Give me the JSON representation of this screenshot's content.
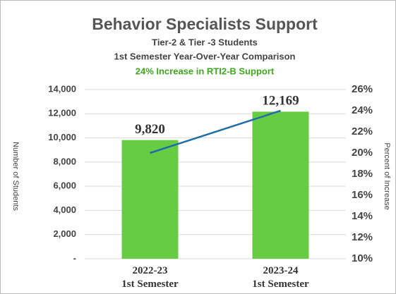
{
  "chart_data": {
    "type": "bar_line",
    "title": "Behavior Specialists Support",
    "subtitles": [
      "Tier-2 & Tier -3 Students",
      "1st Semester Year-Over-Year Comparison"
    ],
    "highlight": "24% Increase in RTI2-B Support",
    "categories": [
      "2022-23\n1st Semester",
      "2023-24\n1st Semester"
    ],
    "ylabel": "Number of Students",
    "y2label": "Percent of Increase",
    "series": [
      {
        "name": "Number of Students",
        "type": "bar",
        "color": "#66cc44",
        "values": [
          9820,
          12169
        ],
        "value_labels": [
          "9,820",
          "12,169"
        ]
      },
      {
        "name": "Percent of Increase",
        "type": "line",
        "axis": "y2",
        "color": "#1f6fa6",
        "values": [
          20,
          24
        ]
      }
    ],
    "ylim": [
      0,
      14000
    ],
    "yticks": [
      {
        "value": 0,
        "label": "-"
      },
      {
        "value": 2000,
        "label": "2,000"
      },
      {
        "value": 4000,
        "label": "4,000"
      },
      {
        "value": 6000,
        "label": "6,000"
      },
      {
        "value": 8000,
        "label": "8,000"
      },
      {
        "value": 10000,
        "label": "10,000"
      },
      {
        "value": 12000,
        "label": "12,000"
      },
      {
        "value": 14000,
        "label": "14,000"
      }
    ],
    "y2lim": [
      10,
      26
    ],
    "y2ticks": [
      {
        "value": 10,
        "label": "10%"
      },
      {
        "value": 12,
        "label": "12%"
      },
      {
        "value": 14,
        "label": "14%"
      },
      {
        "value": 16,
        "label": "16%"
      },
      {
        "value": 18,
        "label": "18%"
      },
      {
        "value": 20,
        "label": "20%"
      },
      {
        "value": 22,
        "label": "22%"
      },
      {
        "value": 24,
        "label": "24%"
      },
      {
        "value": 26,
        "label": "26%"
      }
    ],
    "grid": true
  }
}
